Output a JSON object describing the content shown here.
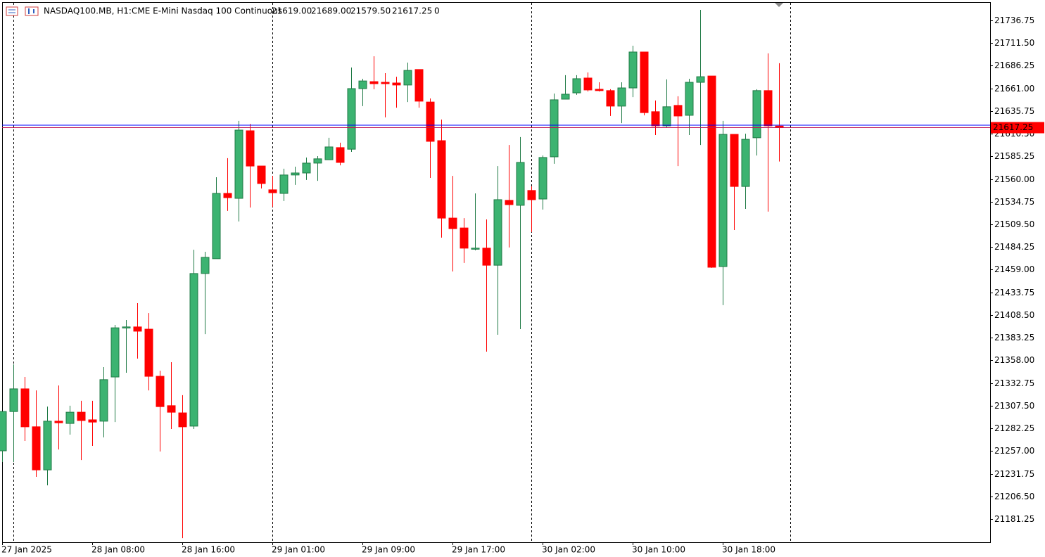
{
  "header": {
    "symbol": "NASDAQ100.MB, H1:",
    "description": "CME E-Mini Nasdaq 100 Continuous",
    "ohlc": [
      "21619.00",
      "21689.00",
      "21579.50",
      "21617.25"
    ],
    "volume": "0"
  },
  "chart_data": {
    "type": "candlestick",
    "categories": [
      "27 Jan 2025",
      null,
      null,
      null,
      null,
      null,
      null,
      null,
      "28 Jan 08:00",
      null,
      null,
      null,
      null,
      null,
      null,
      null,
      "28 Jan 16:00",
      null,
      null,
      null,
      null,
      null,
      null,
      null,
      "29 Jan 01:00",
      null,
      null,
      null,
      null,
      null,
      null,
      null,
      "29 Jan 09:00",
      null,
      null,
      null,
      null,
      null,
      null,
      null,
      "29 Jan 17:00",
      null,
      null,
      null,
      null,
      null,
      null,
      null,
      "30 Jan 02:00",
      null,
      null,
      null,
      null,
      null,
      null,
      null,
      "30 Jan 10:00",
      null,
      null,
      null,
      null,
      null,
      null,
      null,
      "30 Jan 18:00",
      null,
      null,
      null,
      null,
      null
    ],
    "open": [
      21257.25,
      21301.0,
      21326.25,
      21284.0,
      21236.0,
      21290.25,
      21287.75,
      21300.25,
      21291.75,
      21290.25,
      21339.5,
      21394.25,
      21395.25,
      21392.75,
      21340.25,
      21307.5,
      21299.5,
      21284.75,
      21454.75,
      21471.25,
      21544.0,
      21538.5,
      21613.75,
      21574.5,
      21548.0,
      21544.0,
      21564.5,
      21566.75,
      21577.75,
      21581.5,
      21595.0,
      21593.25,
      21660.75,
      21668.5,
      21667.75,
      21667.0,
      21664.75,
      21682.0,
      21645.75,
      21602.75,
      21516.5,
      21505.5,
      21482.0,
      21483.0,
      21464.0,
      21536.25,
      21530.75,
      21547.25,
      21537.75,
      21584.75,
      21649.0,
      21656.0,
      21672.5,
      21660.0,
      21658.5,
      21641.25,
      21661.5,
      21701.5,
      21635.0,
      21619.25,
      21642.0,
      21631.0,
      21667.75,
      21674.75,
      21462.5,
      21609.75,
      21551.75,
      21606.0,
      21658.5,
      21619.0
    ],
    "high": [
      21301.0,
      21353.5,
      21339.5,
      21324.5,
      21306.5,
      21330.0,
      21307.5,
      21313.0,
      21313.0,
      21350.5,
      21397.5,
      21403.0,
      21421.75,
      21410.75,
      21346.5,
      21356.0,
      21319.25,
      21481.25,
      21479.0,
      21562.0,
      21583.25,
      21624.75,
      21621.5,
      21574.5,
      21563.5,
      21571.5,
      21573.75,
      21584.0,
      21585.5,
      21606.0,
      21600.5,
      21684.25,
      21671.75,
      21696.75,
      21678.0,
      21674.0,
      21689.75,
      21682.0,
      21649.75,
      21626.25,
      21563.5,
      21516.5,
      21544.0,
      21515.0,
      21574.5,
      21598.0,
      21606.75,
      21551.75,
      21586.25,
      21655.25,
      21675.75,
      21675.75,
      21678.75,
      21667.75,
      21660.0,
      21667.75,
      21708.5,
      21701.5,
      21647.5,
      21671.0,
      21652.25,
      21671.75,
      21748.5,
      21674.75,
      21624.75,
      21609.75,
      21610.5,
      21660.0,
      21700.0,
      21689.0
    ],
    "low": [
      21244.75,
      21244.75,
      21268.25,
      21228.25,
      21218.75,
      21258.75,
      21275.25,
      21247.0,
      21262.75,
      21272.25,
      21289.25,
      21344.25,
      21360.0,
      21324.5,
      21256.5,
      21281.5,
      21160.0,
      21281.5,
      21387.25,
      21471.25,
      21524.5,
      21512.75,
      21528.25,
      21549.5,
      21529.0,
      21535.5,
      21553.5,
      21559.0,
      21558.0,
      21581.5,
      21575.25,
      21590.25,
      21641.25,
      21660.0,
      21628.75,
      21639.5,
      21645.75,
      21639.5,
      21561.25,
      21494.75,
      21457.0,
      21466.5,
      21480.5,
      21367.75,
      21386.5,
      21483.75,
      21392.75,
      21501.0,
      21526.0,
      21577.0,
      21649.0,
      21653.75,
      21657.5,
      21657.5,
      21630.25,
      21622.25,
      21651.25,
      21631.0,
      21609.0,
      21617.75,
      21574.5,
      21609.0,
      21598.0,
      21461.0,
      21419.5,
      21503.25,
      21526.75,
      21586.25,
      21523.75,
      21579.5
    ],
    "close": [
      21301.0,
      21326.25,
      21284.0,
      21236.0,
      21290.25,
      21288.5,
      21300.25,
      21291.0,
      21289.25,
      21336.5,
      21394.25,
      21395.25,
      21390.5,
      21340.25,
      21306.5,
      21300.25,
      21284.0,
      21454.75,
      21472.75,
      21544.0,
      21539.25,
      21614.5,
      21574.5,
      21555.0,
      21544.75,
      21564.5,
      21566.75,
      21577.75,
      21582.5,
      21595.75,
      21578.5,
      21660.75,
      21669.25,
      21666.25,
      21666.25,
      21664.75,
      21681.0,
      21646.75,
      21602.0,
      21516.5,
      21504.75,
      21483.0,
      21483.0,
      21464.0,
      21537.0,
      21531.5,
      21578.5,
      21537.0,
      21584.0,
      21648.25,
      21654.5,
      21671.75,
      21659.25,
      21658.5,
      21641.25,
      21661.5,
      21701.5,
      21634.0,
      21619.25,
      21640.5,
      21630.25,
      21667.75,
      21674.0,
      21461.75,
      21609.75,
      21551.75,
      21604.25,
      21658.5,
      21619.25,
      21617.25
    ],
    "up_color": "#3cb371",
    "down_color": "#ff0000",
    "ylim": [
      21155.4,
      21757.1
    ],
    "yticks": [
      21736.75,
      {
        "value": 21711.5,
        "label": "21711.50"
      },
      21686.25,
      {
        "value": 21661,
        "label": "21661.00"
      },
      21635.75,
      {
        "value": 21610.5,
        "label": "21610.50"
      },
      21585.25,
      {
        "value": 21560,
        "label": "21560.00"
      },
      21534.75,
      {
        "value": 21509.5,
        "label": "21509.50"
      },
      21484.25,
      {
        "value": 21459,
        "label": "21459.00"
      },
      21433.75,
      {
        "value": 21408.5,
        "label": "21408.50"
      },
      21383.25,
      {
        "value": 21358,
        "label": "21358.00"
      },
      21332.75,
      {
        "value": 21307.5,
        "label": "21307.50"
      },
      21282.25,
      {
        "value": 21257,
        "label": "21257.00"
      },
      21231.75,
      {
        "value": 21206.5,
        "label": "21206.50"
      },
      21181.25
    ],
    "last_price": 21617.25,
    "ask_price": 21620.0,
    "grid": false
  }
}
